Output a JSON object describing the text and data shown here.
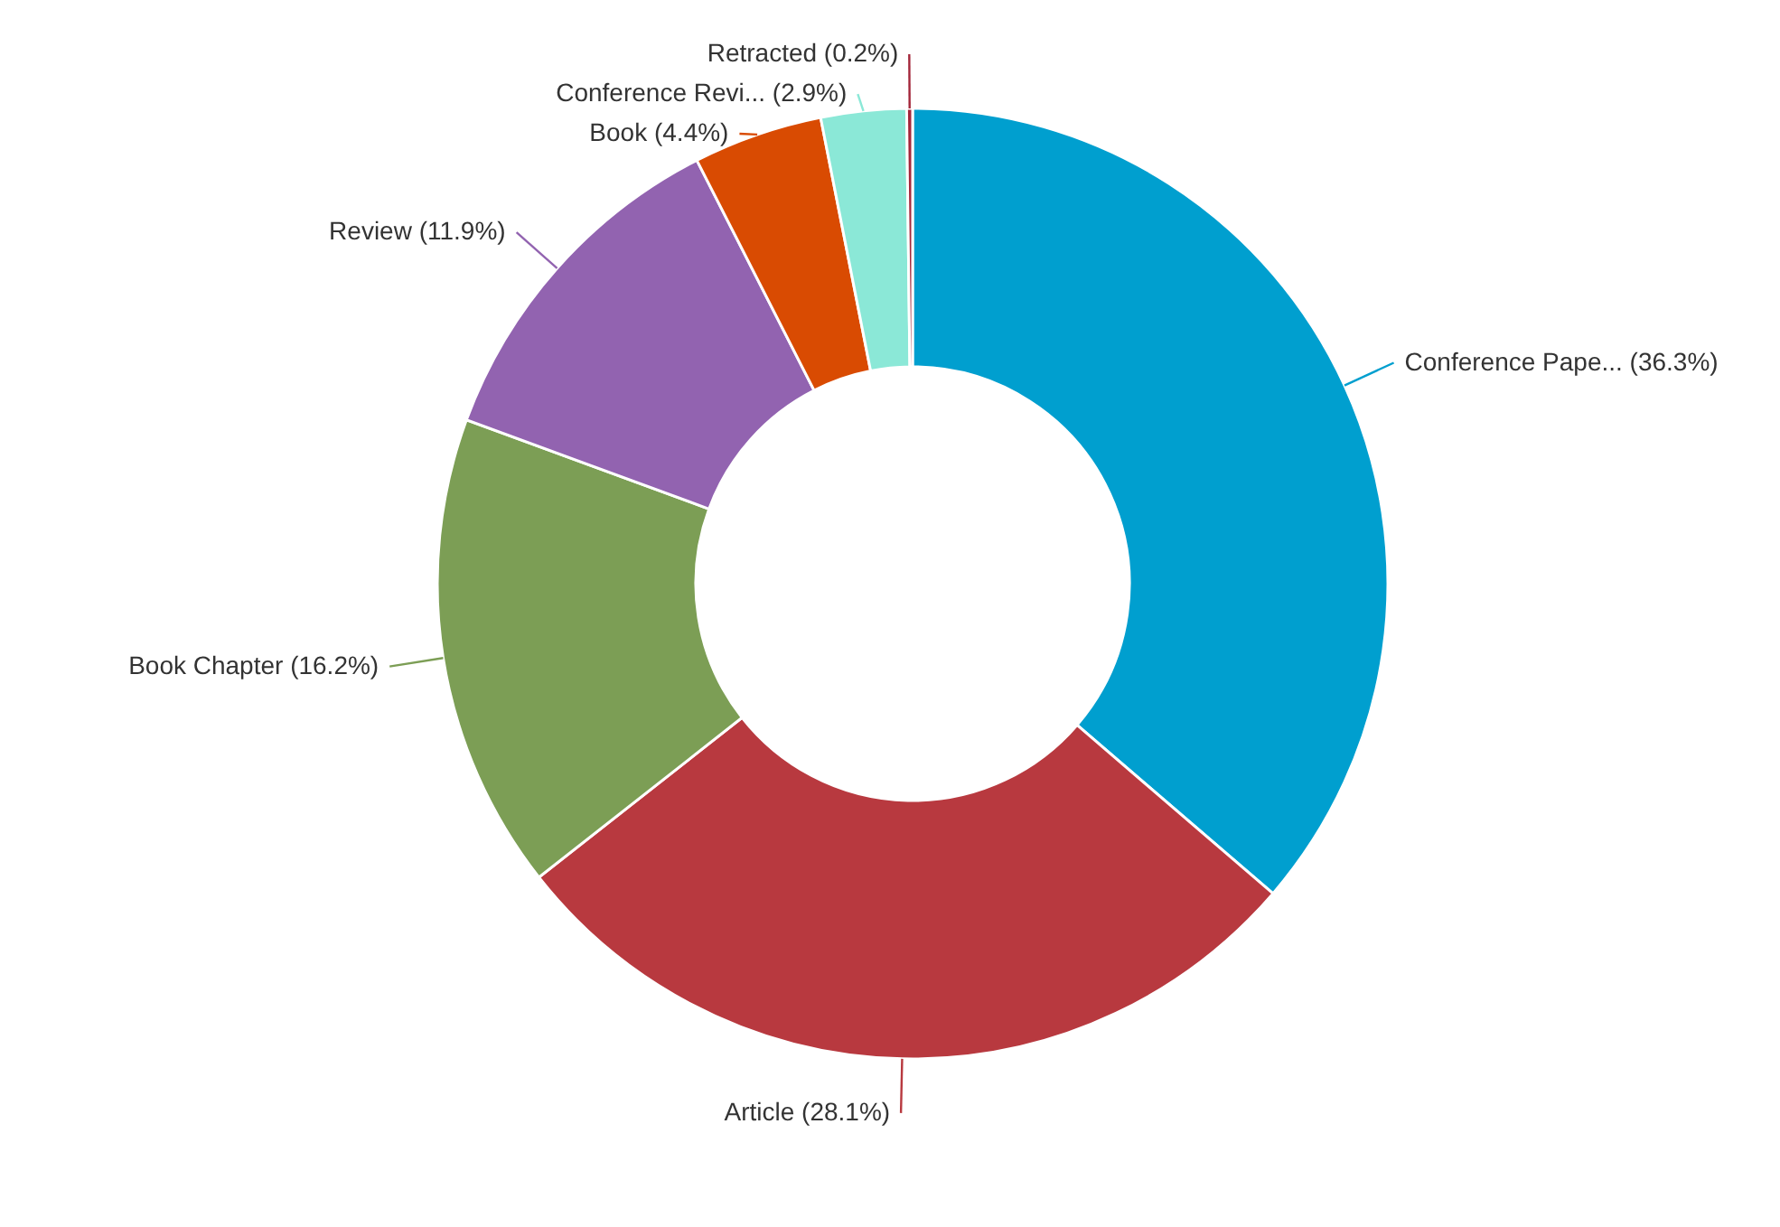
{
  "chart_data": {
    "type": "donut",
    "categories": [
      "Conference Pape...",
      "Article",
      "Book Chapter",
      "Review",
      "Book",
      "Conference Revi...",
      "Retracted"
    ],
    "values": [
      36.3,
      28.1,
      16.2,
      11.9,
      4.4,
      2.9,
      0.2
    ],
    "value_labels": [
      "(36.3%)",
      "(28.1%)",
      "(16.2%)",
      "(11.9%)",
      "(4.4%)",
      "(2.9%)",
      "(0.2%)"
    ],
    "colors": [
      "#009fcf",
      "#b8393f",
      "#7c9e55",
      "#9263b0",
      "#d94b02",
      "#8be8d7",
      "#a3263a"
    ],
    "data_labels": true
  }
}
